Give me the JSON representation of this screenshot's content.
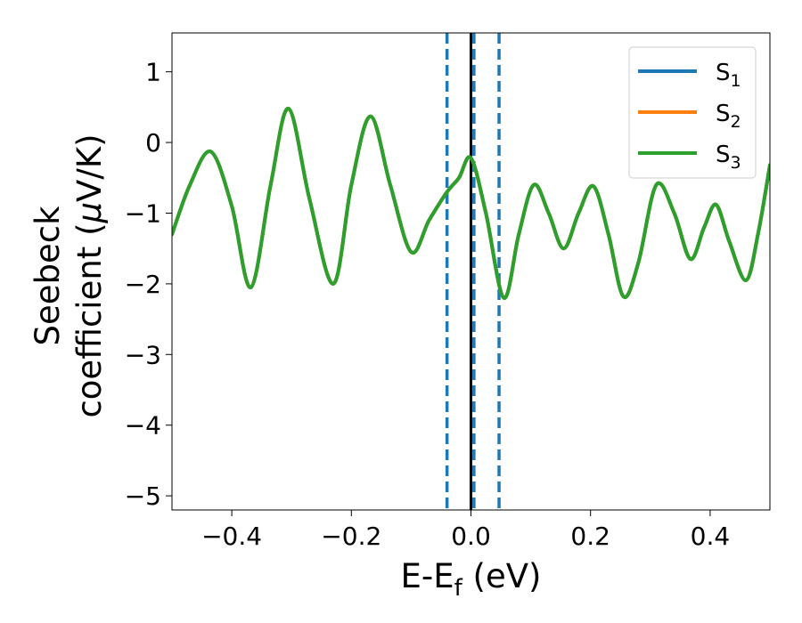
{
  "chart_data": {
    "type": "line",
    "xlabel": {
      "base": "E-E",
      "sub": "f",
      "tail": " (eV)"
    },
    "ylabel": {
      "line1": "Seebeck",
      "line2_pre": "coefficient  (",
      "mu": "μ",
      "line2_post": "V/K)"
    },
    "xlim": [
      -0.5,
      0.5
    ],
    "ylim": [
      -5.2,
      1.55
    ],
    "xticks": [
      -0.4,
      -0.2,
      0.0,
      0.2,
      0.4
    ],
    "xtick_labels": [
      "−0.4",
      "−0.2",
      "0.0",
      "0.2",
      "0.4"
    ],
    "yticks": [
      1,
      0,
      -1,
      -2,
      -3,
      -4,
      -5
    ],
    "ytick_labels": [
      "1",
      "0",
      "−1",
      "−2",
      "−3",
      "−4",
      "−5"
    ],
    "grid": false,
    "legend_position": "top-right",
    "legend": [
      {
        "base": "S",
        "sub": "1",
        "color": "#1f77b4"
      },
      {
        "base": "S",
        "sub": "2",
        "color": "#ff7f0e"
      },
      {
        "base": "S",
        "sub": "3",
        "color": "#2ca02c"
      }
    ],
    "vlines": [
      {
        "x": 0.0,
        "style": "solid",
        "color": "#000000"
      },
      {
        "x": -0.04,
        "style": "dashed",
        "color": "#1f77b4"
      },
      {
        "x": 0.005,
        "style": "dashed",
        "color": "#1f77b4"
      },
      {
        "x": 0.047,
        "style": "dashed",
        "color": "#1f77b4"
      }
    ],
    "series": [
      {
        "name": "S1",
        "color": "#1f77b4",
        "x": [
          -0.5,
          -0.47,
          -0.435,
          -0.4,
          -0.368,
          -0.335,
          -0.305,
          -0.27,
          -0.23,
          -0.2,
          -0.168,
          -0.135,
          -0.1,
          -0.07,
          -0.04,
          -0.02,
          0.0,
          0.025,
          0.055,
          0.08,
          0.105,
          0.13,
          0.155,
          0.18,
          0.205,
          0.23,
          0.255,
          0.28,
          0.31,
          0.34,
          0.367,
          0.39,
          0.41,
          0.432,
          0.46,
          0.48,
          0.5
        ],
        "y": [
          -1.3,
          -0.6,
          -0.13,
          -0.9,
          -2.05,
          -0.6,
          0.48,
          -0.8,
          -2.0,
          -0.6,
          0.37,
          -0.6,
          -1.55,
          -1.1,
          -0.7,
          -0.5,
          -0.22,
          -1.0,
          -2.2,
          -1.3,
          -0.6,
          -1.0,
          -1.5,
          -1.0,
          -0.62,
          -1.3,
          -2.18,
          -1.7,
          -0.6,
          -1.0,
          -1.65,
          -1.2,
          -0.88,
          -1.4,
          -1.95,
          -1.3,
          -0.32
        ]
      },
      {
        "name": "S2",
        "color": "#ff7f0e",
        "x": [
          -0.5,
          -0.47,
          -0.435,
          -0.4,
          -0.368,
          -0.335,
          -0.305,
          -0.27,
          -0.23,
          -0.2,
          -0.168,
          -0.135,
          -0.1,
          -0.07,
          -0.04,
          -0.02,
          0.0,
          0.025,
          0.055,
          0.08,
          0.105,
          0.13,
          0.155,
          0.18,
          0.205,
          0.23,
          0.255,
          0.28,
          0.31,
          0.34,
          0.367,
          0.39,
          0.41,
          0.432,
          0.46,
          0.48,
          0.5
        ],
        "y": [
          -1.3,
          -0.6,
          -0.13,
          -0.9,
          -2.05,
          -0.6,
          0.48,
          -0.8,
          -2.0,
          -0.6,
          0.37,
          -0.6,
          -1.55,
          -1.1,
          -0.7,
          -0.5,
          -0.22,
          -1.0,
          -2.2,
          -1.3,
          -0.6,
          -1.0,
          -1.5,
          -1.0,
          -0.62,
          -1.3,
          -2.18,
          -1.7,
          -0.6,
          -1.0,
          -1.65,
          -1.2,
          -0.88,
          -1.4,
          -1.95,
          -1.3,
          -0.32
        ]
      },
      {
        "name": "S3",
        "color": "#2ca02c",
        "x": [
          -0.5,
          -0.47,
          -0.435,
          -0.4,
          -0.368,
          -0.335,
          -0.305,
          -0.27,
          -0.23,
          -0.2,
          -0.168,
          -0.135,
          -0.1,
          -0.07,
          -0.04,
          -0.02,
          0.0,
          0.025,
          0.055,
          0.08,
          0.105,
          0.13,
          0.155,
          0.18,
          0.205,
          0.23,
          0.255,
          0.28,
          0.31,
          0.34,
          0.367,
          0.39,
          0.41,
          0.432,
          0.46,
          0.48,
          0.5
        ],
        "y": [
          -1.3,
          -0.6,
          -0.13,
          -0.9,
          -2.05,
          -0.6,
          0.48,
          -0.8,
          -2.0,
          -0.6,
          0.37,
          -0.6,
          -1.55,
          -1.1,
          -0.7,
          -0.5,
          -0.22,
          -1.0,
          -2.2,
          -1.3,
          -0.6,
          -1.0,
          -1.5,
          -1.0,
          -0.62,
          -1.3,
          -2.18,
          -1.7,
          -0.6,
          -1.0,
          -1.65,
          -1.2,
          -0.88,
          -1.4,
          -1.95,
          -1.3,
          -0.32
        ]
      }
    ]
  }
}
